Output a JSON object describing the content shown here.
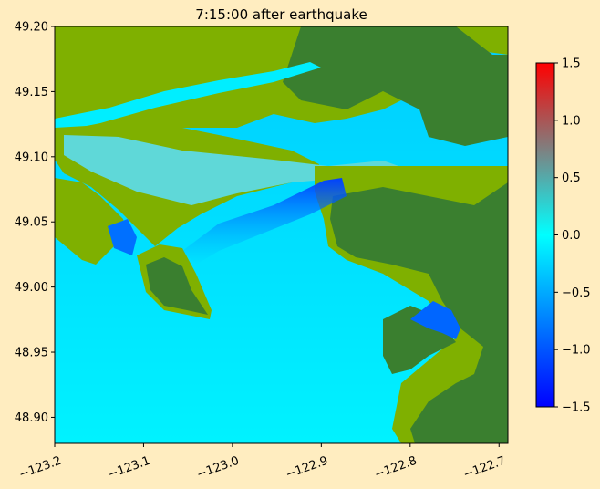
{
  "chart_data": {
    "type": "heatmap",
    "title": "7:15:00 after earthquake",
    "xlabel": "",
    "ylabel": "",
    "xlim": [
      -123.2,
      -122.69
    ],
    "ylim": [
      48.88,
      49.2
    ],
    "x_ticks": [
      "−123.2",
      "−123.1",
      "−123.0",
      "−122.9",
      "−122.8",
      "−122.7"
    ],
    "x_tick_values": [
      -123.2,
      -123.1,
      -123.0,
      -122.9,
      -122.8,
      -122.7
    ],
    "y_ticks": [
      "49.20",
      "49.15",
      "49.10",
      "49.05",
      "49.00",
      "48.95",
      "48.90"
    ],
    "y_tick_values": [
      49.2,
      49.15,
      49.1,
      49.05,
      49.0,
      48.95,
      48.9
    ],
    "colorbar": {
      "range": [
        -1.5,
        1.5
      ],
      "ticks": [
        "1.5",
        "1.0",
        "0.5",
        "0.0",
        "−0.5",
        "−1.0",
        "−1.5"
      ],
      "tick_values": [
        1.5,
        1.0,
        0.5,
        0.0,
        -0.5,
        -1.0,
        -1.5
      ],
      "colors": [
        "#0000ff",
        "#00ffff",
        "#ff0000"
      ]
    },
    "land_colors": {
      "low": "#7fb000",
      "high": "#3a7f2f"
    },
    "water_color": "#00eeff",
    "x_tick_rotation_deg": 20,
    "grid": false
  }
}
